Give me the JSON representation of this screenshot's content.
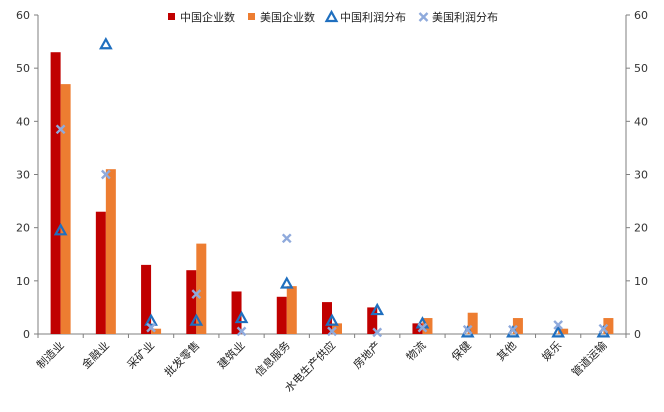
{
  "chart_data": {
    "type": "bar",
    "categories": [
      "制造业",
      "金融业",
      "采矿业",
      "批发零售",
      "建筑业",
      "信息服务",
      "水电生产供应",
      "房地产",
      "物流",
      "保健",
      "其他",
      "娱乐",
      "管道运输"
    ],
    "series": [
      {
        "name": "中国企业数",
        "kind": "bar",
        "color": "#c00000",
        "values": [
          53,
          23,
          13,
          12,
          8,
          7,
          6,
          5,
          2,
          0,
          0,
          0,
          0
        ]
      },
      {
        "name": "美国企业数",
        "kind": "bar",
        "color": "#ed7d31",
        "values": [
          47,
          31,
          1,
          17,
          0,
          9,
          2,
          0,
          3,
          4,
          3,
          1,
          3
        ]
      },
      {
        "name": "中国利润分布",
        "kind": "marker",
        "marker": "triangle",
        "color": "#1f6fbf",
        "values": [
          19.5,
          54.5,
          2.5,
          2.5,
          3,
          9.5,
          2.5,
          4.5,
          2,
          0.3,
          0.3,
          0.3,
          0.3
        ]
      },
      {
        "name": "美国利润分布",
        "kind": "marker",
        "marker": "x",
        "color": "#8faadc",
        "values": [
          38.5,
          30,
          1.2,
          7.5,
          0.5,
          18,
          0.5,
          0.3,
          1.2,
          0.8,
          0.8,
          1.7,
          1
        ]
      }
    ],
    "ylim": [
      0,
      60
    ],
    "yticks": [
      0,
      10,
      20,
      30,
      40,
      50,
      60
    ],
    "secondary_ylim": [
      0,
      60
    ],
    "grid": false,
    "legend_position": "top"
  }
}
